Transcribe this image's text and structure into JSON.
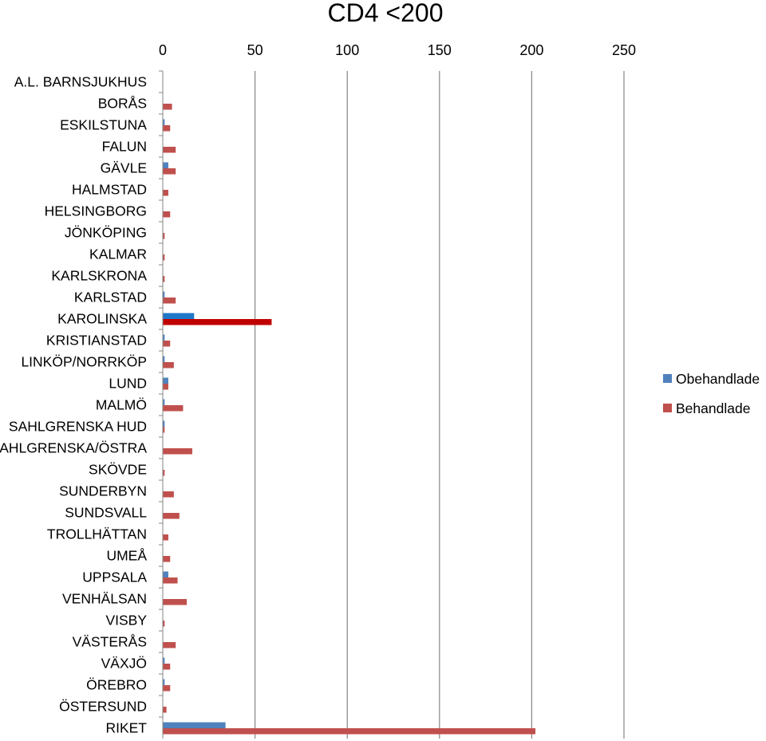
{
  "chart_data": {
    "type": "bar",
    "orientation": "horizontal",
    "title": "CD4 <200",
    "xlim": [
      0,
      250
    ],
    "xticks": [
      0,
      50,
      100,
      150,
      200,
      250
    ],
    "x_axis_position": "top",
    "grid": true,
    "legend_position": "right",
    "categories": [
      "A.L. BARNSJUKHUS",
      "BORÅS",
      "ESKILSTUNA",
      "FALUN",
      "GÄVLE",
      "HALMSTAD",
      "HELSINGBORG",
      "JÖNKÖPING",
      "KALMAR",
      "KARLSKRONA",
      "KARLSTAD",
      "KAROLINSKA",
      "KRISTIANSTAD",
      "LINKÖP/NORRKÖP",
      "LUND",
      "MALMÖ",
      "SAHLGRENSKA HUD",
      "SAHLGRENSKA/ÖSTRA",
      "SKÖVDE",
      "SUNDERBYN",
      "SUNDSVALL",
      "TROLLHÄTTAN",
      "UMEÅ",
      "UPPSALA",
      "VENHÄLSAN",
      "VISBY",
      "VÄSTERÅS",
      "VÄXJÖ",
      "ÖREBRO",
      "ÖSTERSUND",
      "RIKET"
    ],
    "series": [
      {
        "name": "Obehandlade",
        "color": "#4f81bd",
        "values": [
          0,
          0,
          1,
          0,
          3,
          0,
          0,
          0,
          0,
          0,
          1,
          17,
          1,
          1,
          3,
          1,
          1,
          0,
          0,
          0,
          0,
          0,
          0,
          3,
          0,
          0,
          0,
          1,
          1,
          0,
          34
        ]
      },
      {
        "name": "Behandlade",
        "color": "#c0504d",
        "values": [
          0,
          5,
          4,
          7,
          7,
          3,
          4,
          1,
          1,
          1,
          7,
          59,
          4,
          6,
          3,
          11,
          1,
          16,
          1,
          6,
          9,
          3,
          4,
          8,
          13,
          1,
          7,
          4,
          4,
          2,
          202
        ]
      }
    ],
    "highlight": {
      "KAROLINSKA": {
        "Obehandlade": "#1f77c8",
        "Behandlade": "#c00000"
      }
    }
  }
}
